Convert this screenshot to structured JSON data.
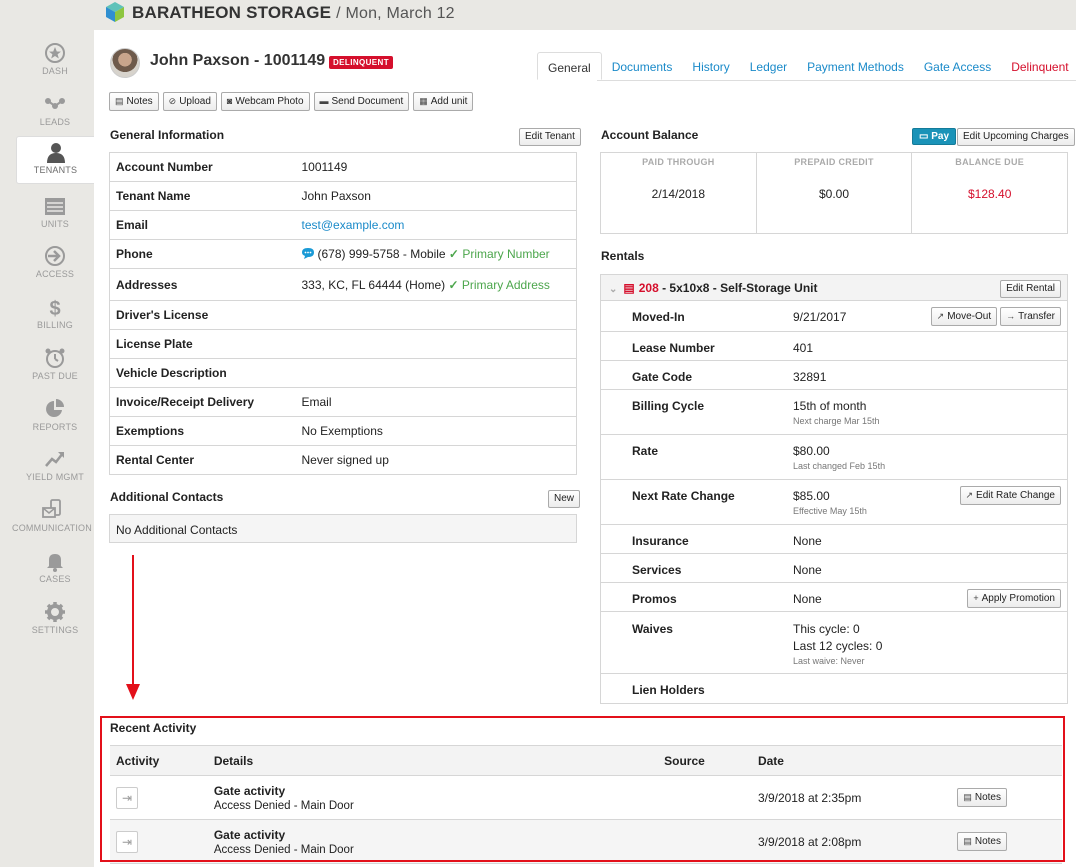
{
  "brand": {
    "name": "BARATHEON STORAGE",
    "date": "/ Mon, March 12"
  },
  "sidebar": {
    "items": [
      {
        "label": "DASH",
        "icon": "star-icon"
      },
      {
        "label": "LEADS",
        "icon": "leads-icon"
      },
      {
        "label": "TENANTS",
        "icon": "person-icon"
      },
      {
        "label": "UNITS",
        "icon": "units-icon"
      },
      {
        "label": "ACCESS",
        "icon": "access-icon"
      },
      {
        "label": "BILLING",
        "icon": "dollar-icon"
      },
      {
        "label": "PAST DUE",
        "icon": "alarm-clock-icon"
      },
      {
        "label": "REPORTS",
        "icon": "pie-chart-icon"
      },
      {
        "label": "YIELD MGMT",
        "icon": "trend-icon"
      },
      {
        "label": "COMMUNICATION",
        "icon": "phone-mail-icon"
      },
      {
        "label": "CASES",
        "icon": "bell-icon"
      },
      {
        "label": "SETTINGS",
        "icon": "gear-icon"
      }
    ],
    "active_index": 2
  },
  "tenant": {
    "name": "John Paxson - 1001149",
    "badge": "DELINQUENT"
  },
  "tabs": [
    "General",
    "Documents",
    "History",
    "Ledger",
    "Payment Methods",
    "Gate Access",
    "Delinquent"
  ],
  "actions": [
    "Notes",
    "Upload",
    "Webcam Photo",
    "Send Document",
    "Add unit"
  ],
  "general": {
    "title": "General Information",
    "edit_label": "Edit Tenant",
    "rows": [
      {
        "k": "Account Number",
        "v": "1001149"
      },
      {
        "k": "Tenant Name",
        "v": "John Paxson"
      },
      {
        "k": "Email",
        "v": "test@example.com"
      },
      {
        "k": "Phone",
        "v": "(678) 999-5758 - Mobile",
        "extra": "Primary Number"
      },
      {
        "k": "Addresses",
        "v": "333, KC, FL 64444 (Home)",
        "extra": "Primary Address"
      },
      {
        "k": "Driver's License",
        "v": ""
      },
      {
        "k": "License Plate",
        "v": ""
      },
      {
        "k": "Vehicle Description",
        "v": ""
      },
      {
        "k": "Invoice/Receipt Delivery",
        "v": "Email"
      },
      {
        "k": "Exemptions",
        "v": "No Exemptions"
      },
      {
        "k": "Rental Center",
        "v": "Never signed up"
      }
    ]
  },
  "contacts": {
    "title": "Additional Contacts",
    "new_label": "New",
    "empty": "No Additional Contacts"
  },
  "balance": {
    "title": "Account Balance",
    "pay_label": "Pay",
    "edit_label": "Edit Upcoming Charges",
    "cols": [
      {
        "h": "PAID THROUGH",
        "v": "2/14/2018"
      },
      {
        "h": "PREPAID CREDIT",
        "v": "$0.00"
      },
      {
        "h": "BALANCE DUE",
        "v": "$128.40"
      }
    ]
  },
  "rentals": {
    "title": "Rentals",
    "unit_num": "208",
    "unit_desc": " - 5x10x8 - Self-Storage Unit",
    "edit_label": "Edit Rental",
    "moved_in": {
      "k": "Moved-In",
      "v": "9/21/2017",
      "btn1": "Move-Out",
      "btn2": "Transfer"
    },
    "lease": {
      "k": "Lease Number",
      "v": "401"
    },
    "gate": {
      "k": "Gate Code",
      "v": "32891"
    },
    "billing": {
      "k": "Billing Cycle",
      "v": "15th of month",
      "sub": "Next charge Mar 15th"
    },
    "rate": {
      "k": "Rate",
      "v": "$80.00",
      "sub": "Last changed Feb 15th"
    },
    "next_rate": {
      "k": "Next Rate Change",
      "v": "$85.00",
      "sub": "Effective May 15th",
      "btn": "Edit Rate Change"
    },
    "insurance": {
      "k": "Insurance",
      "v": "None"
    },
    "services": {
      "k": "Services",
      "v": "None"
    },
    "promos": {
      "k": "Promos",
      "v": "None",
      "btn": "Apply Promotion"
    },
    "waives": {
      "k": "Waives",
      "v1": "This cycle: 0",
      "v2": "Last 12 cycles: 0",
      "sub": "Last waive: Never"
    },
    "lien": {
      "k": "Lien Holders",
      "v": ""
    }
  },
  "activity": {
    "title": "Recent Activity",
    "headers": [
      "Activity",
      "Details",
      "Source",
      "Date"
    ],
    "rows": [
      {
        "title": "Gate activity",
        "sub": "Access Denied - Main Door",
        "source": "",
        "date": "3/9/2018 at 2:35pm",
        "btn": "Notes"
      },
      {
        "title": "Gate activity",
        "sub": "Access Denied - Main Door",
        "source": "",
        "date": "3/9/2018 at 2:08pm",
        "btn": "Notes"
      }
    ]
  },
  "colors": {
    "accent": "#1a8ac9",
    "danger": "#d50f2c",
    "success": "#4ca64c",
    "pay": "#1a93b8",
    "annotation": "#e3101a"
  }
}
